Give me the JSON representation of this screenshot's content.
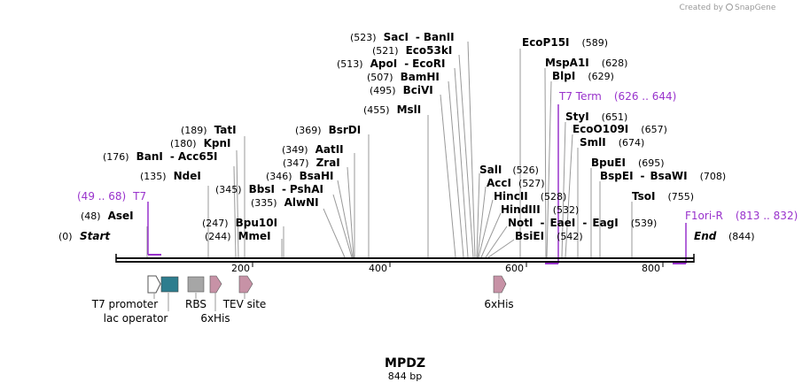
{
  "credit": {
    "prefix": "Created by",
    "brand": "SnapGene"
  },
  "title": {
    "name": "MPDZ",
    "length": "844 bp"
  },
  "ends": {
    "start": {
      "pos": "(0)",
      "label": "Start"
    },
    "end": {
      "pos": "(844)",
      "label": "End"
    }
  },
  "ticks": [
    "200",
    "400",
    "600",
    "800"
  ],
  "sites": [
    {
      "pos": "(48)",
      "name": "AseI"
    },
    {
      "pos": "(135)",
      "name": "NdeI"
    },
    {
      "pos": "(176)",
      "name": "BanI",
      "name2": "Acc65I"
    },
    {
      "pos": "(180)",
      "name": "KpnI"
    },
    {
      "pos": "(189)",
      "name": "TatI"
    },
    {
      "pos": "(244)",
      "name": "MmeI"
    },
    {
      "pos": "(247)",
      "name": "Bpu10I"
    },
    {
      "pos": "(335)",
      "name": "AlwNI"
    },
    {
      "pos": "(345)",
      "name": "BbsI",
      "name2": "PshAI"
    },
    {
      "pos": "(346)",
      "name": "BsaHI"
    },
    {
      "pos": "(347)",
      "name": "ZraI"
    },
    {
      "pos": "(349)",
      "name": "AatII"
    },
    {
      "pos": "(369)",
      "name": "BsrDI"
    },
    {
      "pos": "(455)",
      "name": "MslI"
    },
    {
      "pos": "(495)",
      "name": "BciVI"
    },
    {
      "pos": "(507)",
      "name": "BamHI"
    },
    {
      "pos": "(513)",
      "name": "ApoI",
      "name2": "EcoRI"
    },
    {
      "pos": "(521)",
      "name": "Eco53kI"
    },
    {
      "pos": "(523)",
      "name": "SacI",
      "name2": "BanII"
    },
    {
      "pos": "(526)",
      "name": "SalI"
    },
    {
      "pos": "(527)",
      "name": "AccI"
    },
    {
      "pos": "(528)",
      "name": "HincII"
    },
    {
      "pos": "(532)",
      "name": "HindIII"
    },
    {
      "pos": "(539)",
      "name": "NotI",
      "name2": "EaeI",
      "name3": "EagI"
    },
    {
      "pos": "(542)",
      "name": "BsiEI"
    },
    {
      "pos": "(589)",
      "name": "EcoP15I"
    },
    {
      "pos": "(628)",
      "name": "MspA1I"
    },
    {
      "pos": "(629)",
      "name": "BlpI"
    },
    {
      "pos": "(651)",
      "name": "StyI"
    },
    {
      "pos": "(657)",
      "name": "EcoO109I"
    },
    {
      "pos": "(674)",
      "name": "SmlI"
    },
    {
      "pos": "(695)",
      "name": "BpuEI"
    },
    {
      "pos": "(708)",
      "name": "BspEI",
      "name2": "BsaWI"
    },
    {
      "pos": "(755)",
      "name": "TsoI"
    }
  ],
  "primers": [
    {
      "name": "T7",
      "range": "(49 .. 68)"
    },
    {
      "name": "T7 Term",
      "range": "(626 .. 644)"
    },
    {
      "name": "F1ori-R",
      "range": "(813 .. 832)"
    }
  ],
  "features": [
    {
      "name": "T7 promoter"
    },
    {
      "name": "lac operator"
    },
    {
      "name": "RBS"
    },
    {
      "name": "6xHis"
    },
    {
      "name": "TEV site"
    },
    {
      "name": "6xHis"
    }
  ],
  "colors": {
    "primer": "#9933cc",
    "lac_operator": "#2e7d8e",
    "rbs": "#a6a6a6",
    "tag": "#c792a6",
    "promoter": "#ffffff"
  }
}
